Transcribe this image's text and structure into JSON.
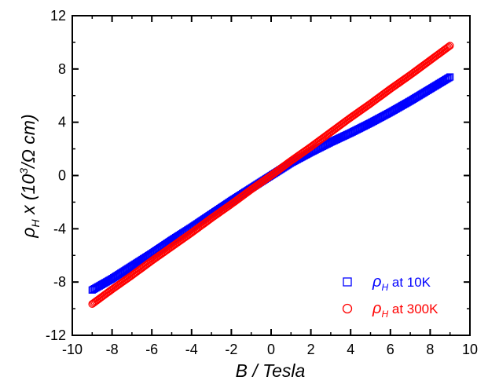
{
  "chart_data": {
    "type": "scatter",
    "xlabel": "B / Tesla",
    "ylabel": {
      "rho": "ρ",
      "rho_sub": "H",
      "pre": " x (10",
      "sup": "3",
      "post": "/Ω cm)"
    },
    "xlim": [
      -10,
      10
    ],
    "ylim": [
      -12,
      12
    ],
    "xticks": [
      -10,
      -8,
      -6,
      -4,
      -2,
      0,
      2,
      4,
      6,
      8,
      10
    ],
    "yticks": [
      -12,
      -8,
      -4,
      0,
      4,
      8,
      12
    ],
    "grid": false,
    "legend_position": "bottom-right",
    "series": [
      {
        "name": "ρH at 10K",
        "legend": {
          "rho": "ρ",
          "sub": "H",
          "text": " at 10K"
        },
        "marker": "square",
        "color": "#0000ff",
        "x": [
          -9,
          -8,
          -7,
          -6,
          -5,
          -4,
          -3,
          -2,
          -1,
          0,
          1,
          2,
          3,
          4,
          5,
          6,
          7,
          8,
          9
        ],
        "y": [
          -8.6,
          -7.75,
          -6.8,
          -5.85,
          -4.85,
          -3.9,
          -2.9,
          -1.9,
          -0.95,
          0,
          0.95,
          1.75,
          2.5,
          3.2,
          3.95,
          4.75,
          5.6,
          6.5,
          7.4
        ]
      },
      {
        "name": "ρH at 300K",
        "legend": {
          "rho": "ρ",
          "sub": "H",
          "text": " at 300K"
        },
        "marker": "circle",
        "color": "#ff0000",
        "x": [
          -9,
          -8,
          -7,
          -6,
          -5,
          -4,
          -3,
          -2,
          -1,
          0,
          1,
          2,
          3,
          4,
          5,
          6,
          7,
          8,
          9
        ],
        "y": [
          -9.65,
          -8.55,
          -7.5,
          -6.4,
          -5.35,
          -4.3,
          -3.2,
          -2.15,
          -1.05,
          0,
          1.1,
          2.15,
          3.25,
          4.35,
          5.4,
          6.5,
          7.55,
          8.65,
          9.75
        ]
      }
    ]
  }
}
